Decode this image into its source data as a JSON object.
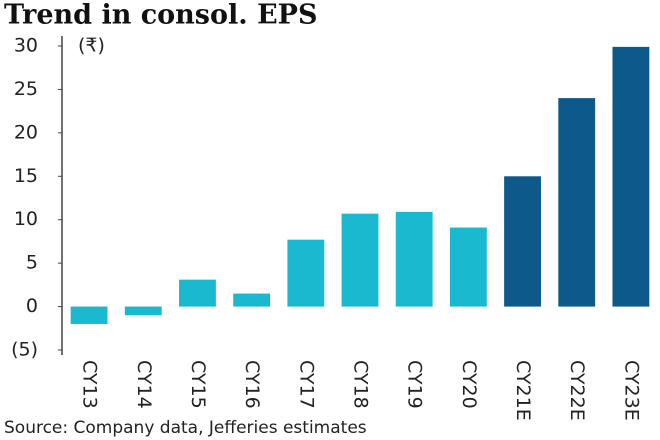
{
  "chart_data": {
    "type": "bar",
    "title": "Trend in consol. EPS",
    "unit_label": "(₹)",
    "source": "Source: Company data, Jefferies estimates",
    "categories": [
      "CY13",
      "CY14",
      "CY15",
      "CY16",
      "CY17",
      "CY18",
      "CY19",
      "CY20",
      "CY21E",
      "CY22E",
      "CY23E"
    ],
    "values": [
      -2,
      -1,
      3.1,
      1.5,
      7.7,
      10.7,
      10.9,
      9.1,
      15,
      24,
      29.9
    ],
    "colors": [
      "#1ab9d0",
      "#1ab9d0",
      "#1ab9d0",
      "#1ab9d0",
      "#1ab9d0",
      "#1ab9d0",
      "#1ab9d0",
      "#1ab9d0",
      "#0d5a8a",
      "#0d5a8a",
      "#0d5a8a"
    ],
    "ylim": [
      -5,
      30
    ],
    "yticks": [
      {
        "value": -5,
        "label": "(5)"
      },
      0,
      5,
      10,
      15,
      20,
      25,
      30
    ]
  }
}
